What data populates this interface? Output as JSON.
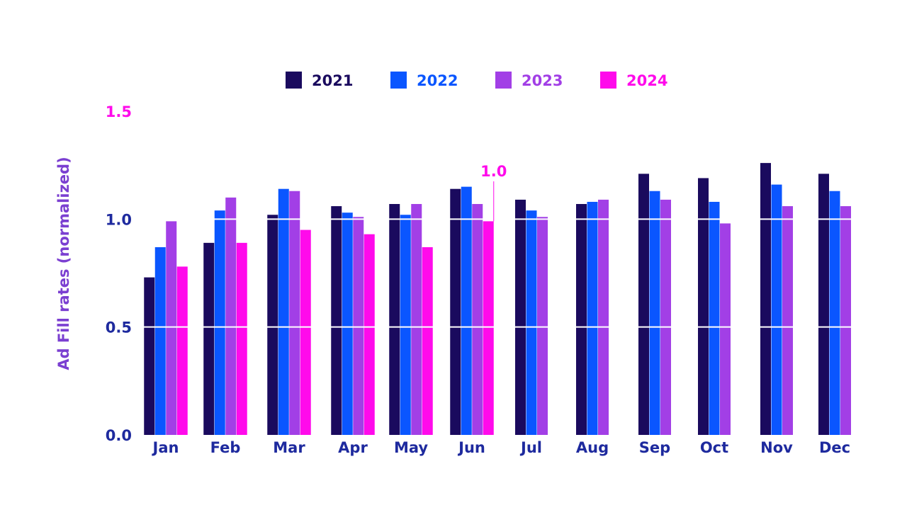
{
  "chart_data": {
    "type": "bar",
    "ylabel": "Ad Fill rates (normalized)",
    "ylim": [
      0,
      1.5
    ],
    "y_ticks": [
      "0.0",
      "0.5",
      "1.0",
      "1.5"
    ],
    "grid": "horizontal lines at 0.5 and 1.0 drawn over bars",
    "legend_position": "top",
    "categories": [
      "Jan",
      "Feb",
      "Mar",
      "Apr",
      "May",
      "Jun",
      "Jul",
      "Aug",
      "Sep",
      "Oct",
      "Nov",
      "Dec"
    ],
    "series": [
      {
        "name": "2021",
        "color": "#1a0a5e",
        "values": [
          0.73,
          0.89,
          1.02,
          1.06,
          1.07,
          1.14,
          1.09,
          1.07,
          1.21,
          1.19,
          1.26,
          1.21
        ]
      },
      {
        "name": "2022",
        "color": "#0a56ff",
        "values": [
          0.87,
          1.04,
          1.14,
          1.03,
          1.02,
          1.15,
          1.04,
          1.08,
          1.13,
          1.08,
          1.16,
          1.13
        ]
      },
      {
        "name": "2023",
        "color": "#a23fe6",
        "values": [
          0.99,
          1.1,
          1.13,
          1.01,
          1.07,
          1.07,
          1.01,
          1.09,
          1.09,
          0.98,
          1.06,
          1.06
        ]
      },
      {
        "name": "2024",
        "color": "#ff0aeb",
        "values": [
          0.78,
          0.89,
          0.95,
          0.93,
          0.87,
          0.99,
          null,
          null,
          null,
          null,
          null,
          null
        ]
      }
    ],
    "annotations": [
      {
        "text": "1.0",
        "category": "Jun",
        "series": "2024",
        "color": "#ff0aeb"
      }
    ],
    "colors": {
      "axis_text": "#1e2a9e",
      "ylabel": "#7b3fd1",
      "top_tick": "#ff0aeb",
      "grid": "#ffffff"
    }
  }
}
